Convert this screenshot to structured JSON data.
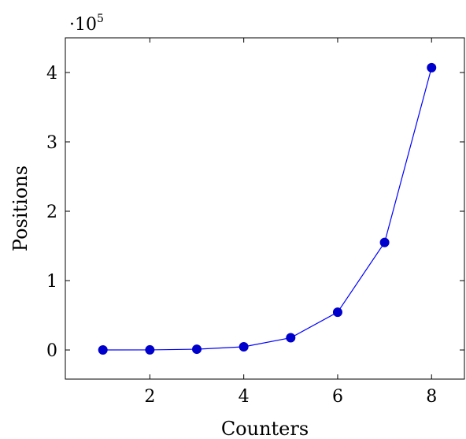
{
  "chart_data": {
    "type": "line",
    "title": "",
    "xlabel": "Counters",
    "ylabel": "Positions",
    "x": [
      1,
      2,
      3,
      4,
      5,
      6,
      7,
      8
    ],
    "series": [
      {
        "values": [
          10,
          120,
          1100,
          4600,
          17600,
          54500,
          155000,
          407000
        ],
        "color": "#0000ff",
        "marker": "circle",
        "marker_color": "#0000cc"
      }
    ],
    "xlim": [
      0.2,
      8.7
    ],
    "ylim": [
      -42000,
      450000
    ],
    "xticks": [
      2,
      4,
      6,
      8
    ],
    "xtick_labels": [
      "2",
      "4",
      "6",
      "8"
    ],
    "yticks": [
      0,
      100000,
      200000,
      300000,
      400000
    ],
    "ytick_labels": [
      "0",
      "1",
      "2",
      "3",
      "4"
    ],
    "y_multiplier": {
      "prefix": "·10",
      "exponent": "5"
    },
    "grid": false,
    "legend": "none"
  }
}
